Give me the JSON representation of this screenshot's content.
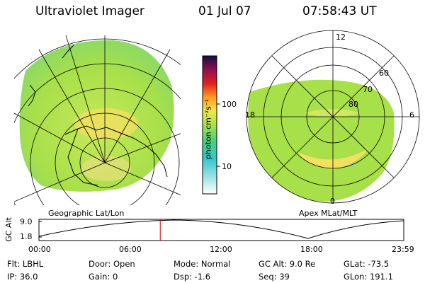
{
  "header": {
    "title": "Ultraviolet Imager",
    "date": "01 Jul 07",
    "time": "07:58:43 UT"
  },
  "colorbar": {
    "label": "photon cm⁻²s⁻¹",
    "ticks": [
      "100",
      "10"
    ]
  },
  "left_panel": {
    "label": "Geographic Lat/Lon"
  },
  "right_panel": {
    "label": "Apex MLat/MLT",
    "mlt_labels": {
      "top": "12",
      "bottom": "0",
      "left": "18",
      "right": "6"
    },
    "lat_labels": [
      "60",
      "70",
      "80"
    ]
  },
  "altitude_plot": {
    "ylabel": "GC Alt",
    "yticks": [
      "9.0",
      "1.8"
    ],
    "xticks": [
      "00:00",
      "06:00",
      "12:00",
      "18:00",
      "23:59"
    ],
    "current_time_hours": 7.98
  },
  "info": {
    "flt": "Flt: LBHL",
    "ip": "IP: 36.0",
    "door": "Door: Open",
    "gain": "Gain:  0",
    "mode": "Mode: Normal",
    "dsp": "Dsp:   -1.6",
    "gcalt": "GC Alt: 9.0 Re",
    "seq": "Seq: 39",
    "glat": "GLat: -73.5",
    "glon": "GLon: 191.1"
  },
  "colors": {
    "aurora_background": "#a8e04a",
    "aurora_bright": "#f2e060",
    "grid": "#000000",
    "orbit_marker": "#cc0000"
  }
}
